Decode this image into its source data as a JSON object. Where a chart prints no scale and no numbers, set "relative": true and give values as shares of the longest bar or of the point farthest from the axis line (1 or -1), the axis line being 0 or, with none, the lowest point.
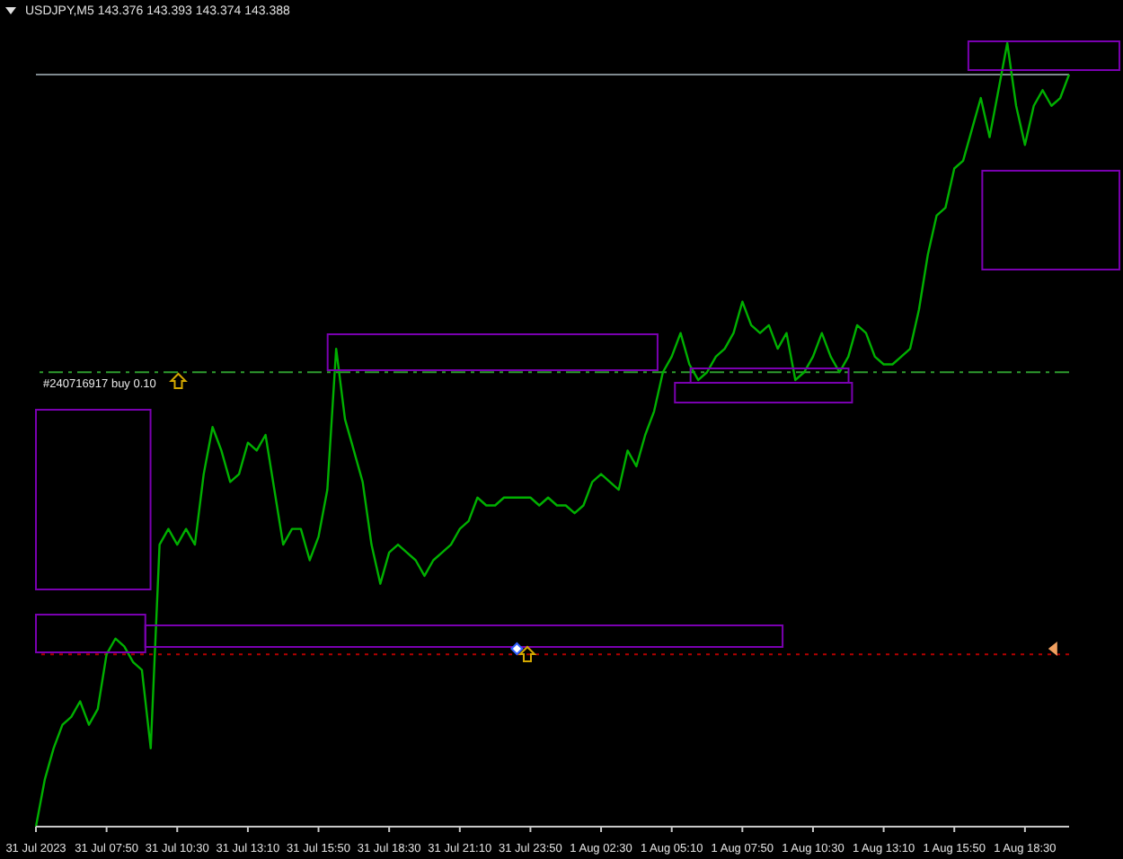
{
  "chart_data": {
    "type": "line",
    "title": "USDJPY,M5  143.376 143.393 143.374 143.388",
    "relative": true,
    "categories": [
      "31 Jul 2023",
      null,
      null,
      null,
      null,
      null,
      null,
      null,
      "31 Jul 07:50",
      null,
      null,
      null,
      null,
      null,
      null,
      null,
      "31 Jul 10:30",
      null,
      null,
      null,
      null,
      null,
      null,
      null,
      "31 Jul 13:10",
      null,
      null,
      null,
      null,
      null,
      null,
      null,
      "31 Jul 15:50",
      null,
      null,
      null,
      null,
      null,
      null,
      null,
      "31 Jul 18:30",
      null,
      null,
      null,
      null,
      null,
      null,
      null,
      "31 Jul 21:10",
      null,
      null,
      null,
      null,
      null,
      null,
      null,
      "31 Jul 23:50",
      null,
      null,
      null,
      null,
      null,
      null,
      null,
      "1 Aug 02:30",
      null,
      null,
      null,
      null,
      null,
      null,
      null,
      "1 Aug 05:10",
      null,
      null,
      null,
      null,
      null,
      null,
      null,
      "1 Aug 07:50",
      null,
      null,
      null,
      null,
      null,
      null,
      null,
      "1 Aug 10:30",
      null,
      null,
      null,
      null,
      null,
      null,
      null,
      "1 Aug 13:10",
      null,
      null,
      null,
      null,
      null,
      null,
      null,
      "1 Aug 15:50",
      null,
      null,
      null,
      null,
      null,
      null,
      null,
      "1 Aug 18:30",
      null,
      null,
      null,
      null,
      null
    ],
    "series": [
      {
        "color": "#00b000",
        "values": [
          0,
          0.06,
          0.1,
          0.13,
          0.14,
          0.16,
          0.13,
          0.15,
          0.22,
          0.24,
          0.23,
          0.21,
          0.2,
          0.1,
          0.36,
          0.38,
          0.36,
          0.38,
          0.36,
          0.45,
          0.51,
          0.48,
          0.44,
          0.45,
          0.49,
          0.48,
          0.5,
          0.43,
          0.36,
          0.38,
          0.38,
          0.34,
          0.37,
          0.43,
          0.61,
          0.52,
          0.48,
          0.44,
          0.36,
          0.31,
          0.35,
          0.36,
          0.35,
          0.34,
          0.32,
          0.34,
          0.35,
          0.36,
          0.38,
          0.39,
          0.42,
          0.41,
          0.41,
          0.42,
          0.42,
          0.42,
          0.42,
          0.41,
          0.42,
          0.41,
          0.41,
          0.4,
          0.41,
          0.44,
          0.45,
          0.44,
          0.43,
          0.48,
          0.46,
          0.5,
          0.53,
          0.58,
          0.6,
          0.63,
          0.59,
          0.57,
          0.58,
          0.6,
          0.61,
          0.63,
          0.67,
          0.64,
          0.63,
          0.64,
          0.61,
          0.63,
          0.57,
          0.58,
          0.6,
          0.63,
          0.6,
          0.58,
          0.6,
          0.64,
          0.63,
          0.6,
          0.59,
          0.59,
          0.6,
          0.61,
          0.66,
          0.73,
          0.78,
          0.79,
          0.84,
          0.85,
          0.89,
          0.93,
          0.88,
          0.94,
          1,
          0.92,
          0.87,
          0.92,
          0.94,
          0.92,
          0.93,
          0.96
        ]
      }
    ],
    "ref_lines": [
      {
        "axis": "y",
        "value": 0.96,
        "label": null,
        "color": "#7f8a8f",
        "line_style": "solid"
      },
      {
        "axis": "y",
        "value": 0.58,
        "label": "#240716917 buy 0.10",
        "color": "#2e9a2e",
        "line_style": "dashed"
      },
      {
        "axis": "y",
        "value": 0.22,
        "label": null,
        "color": "#b00000",
        "line_style": "dotted"
      }
    ],
    "grid": false,
    "legend": false,
    "marker": "none",
    "line_style": "solid"
  }
}
